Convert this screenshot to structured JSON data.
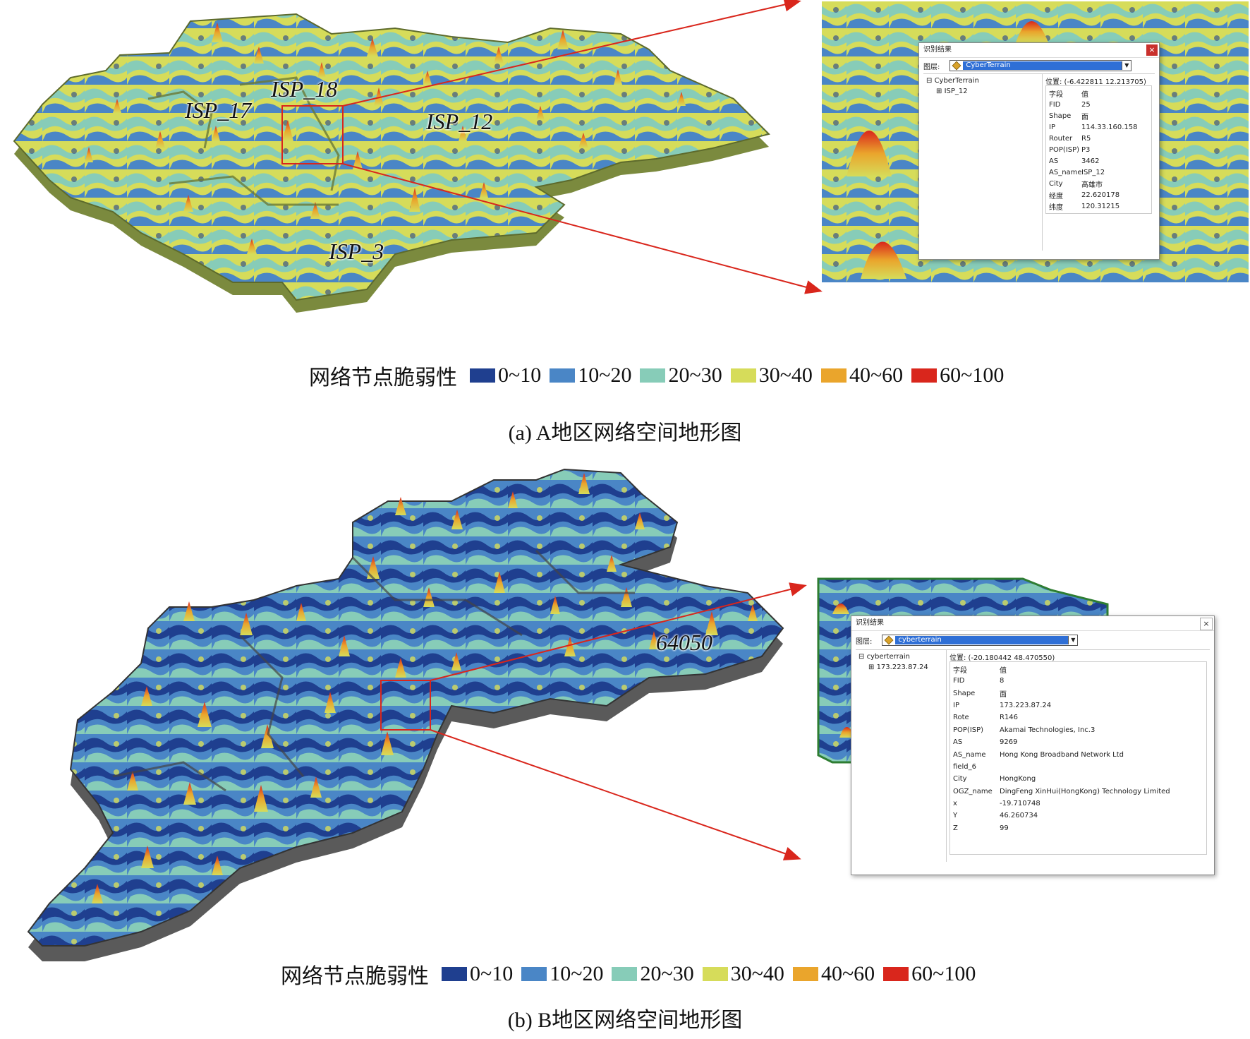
{
  "panel_a": {
    "isp_labels": [
      "ISP_18",
      "ISP_17",
      "ISP_12",
      "ISP_3"
    ],
    "legend": {
      "title": "网络节点脆弱性",
      "items": [
        {
          "label": "0~10",
          "color": "#1f3f8f"
        },
        {
          "label": "10~20",
          "color": "#4a86c6"
        },
        {
          "label": "20~30",
          "color": "#87ccb8"
        },
        {
          "label": "30~40",
          "color": "#d6dc5a"
        },
        {
          "label": "40~60",
          "color": "#eaa52c"
        },
        {
          "label": "60~100",
          "color": "#d9261c"
        }
      ]
    },
    "caption": "(a) A地区网络空间地形图",
    "dialog": {
      "title": "识别结果",
      "layer_label": "图层:",
      "layer_value": "CyberTerrain",
      "tree_root": "CyberTerrain",
      "tree_child": "ISP_12",
      "position": "位置: (-6.422811 12.213705)",
      "header": {
        "k": "字段",
        "v": "值"
      },
      "rows": [
        {
          "k": "FID",
          "v": "25"
        },
        {
          "k": "Shape",
          "v": "面"
        },
        {
          "k": "IP",
          "v": "114.33.160.158"
        },
        {
          "k": "Router",
          "v": "R5"
        },
        {
          "k": "POP(ISP)",
          "v": "P3"
        },
        {
          "k": "AS",
          "v": "3462"
        },
        {
          "k": "AS_name",
          "v": "ISP_12"
        },
        {
          "k": "City",
          "v": "高雄市"
        },
        {
          "k": "经度",
          "v": "22.620178"
        },
        {
          "k": "纬度",
          "v": "120.31215"
        }
      ]
    }
  },
  "panel_b": {
    "as_label": "64050",
    "legend": {
      "title": "网络节点脆弱性",
      "items": [
        {
          "label": "0~10",
          "color": "#1f3f8f"
        },
        {
          "label": "10~20",
          "color": "#4a86c6"
        },
        {
          "label": "20~30",
          "color": "#87ccb8"
        },
        {
          "label": "30~40",
          "color": "#d6dc5a"
        },
        {
          "label": "40~60",
          "color": "#eaa52c"
        },
        {
          "label": "60~100",
          "color": "#d9261c"
        }
      ]
    },
    "caption": "(b) B地区网络空间地形图",
    "dialog": {
      "title": "识别结果",
      "layer_label": "图层:",
      "layer_value": "cyberterrain",
      "tree_root": "cyberterrain",
      "tree_child": "173.223.87.24",
      "position": "位置: (-20.180442 48.470550)",
      "header": {
        "k": "字段",
        "v": "值"
      },
      "rows": [
        {
          "k": "FID",
          "v": "8"
        },
        {
          "k": "Shape",
          "v": "面"
        },
        {
          "k": "IP",
          "v": "173.223.87.24"
        },
        {
          "k": "Rote",
          "v": "R146"
        },
        {
          "k": "POP(ISP)",
          "v": "Akamai Technologies, Inc.3"
        },
        {
          "k": "AS",
          "v": "9269"
        },
        {
          "k": "AS_name",
          "v": "Hong Kong Broadband Network Ltd"
        },
        {
          "k": "field_6",
          "v": ""
        },
        {
          "k": "City",
          "v": "HongKong"
        },
        {
          "k": "OGZ_name",
          "v": "DingFeng XinHui(HongKong) Technology Limited"
        },
        {
          "k": "x",
          "v": "-19.710748"
        },
        {
          "k": "Y",
          "v": "46.260734"
        },
        {
          "k": "Z",
          "v": "99"
        }
      ]
    }
  },
  "colors": {
    "pointer_arrow": "#d9261c",
    "terrain_wall_a": "#7b8a3e",
    "terrain_wall_b": "#5a5a5a"
  }
}
